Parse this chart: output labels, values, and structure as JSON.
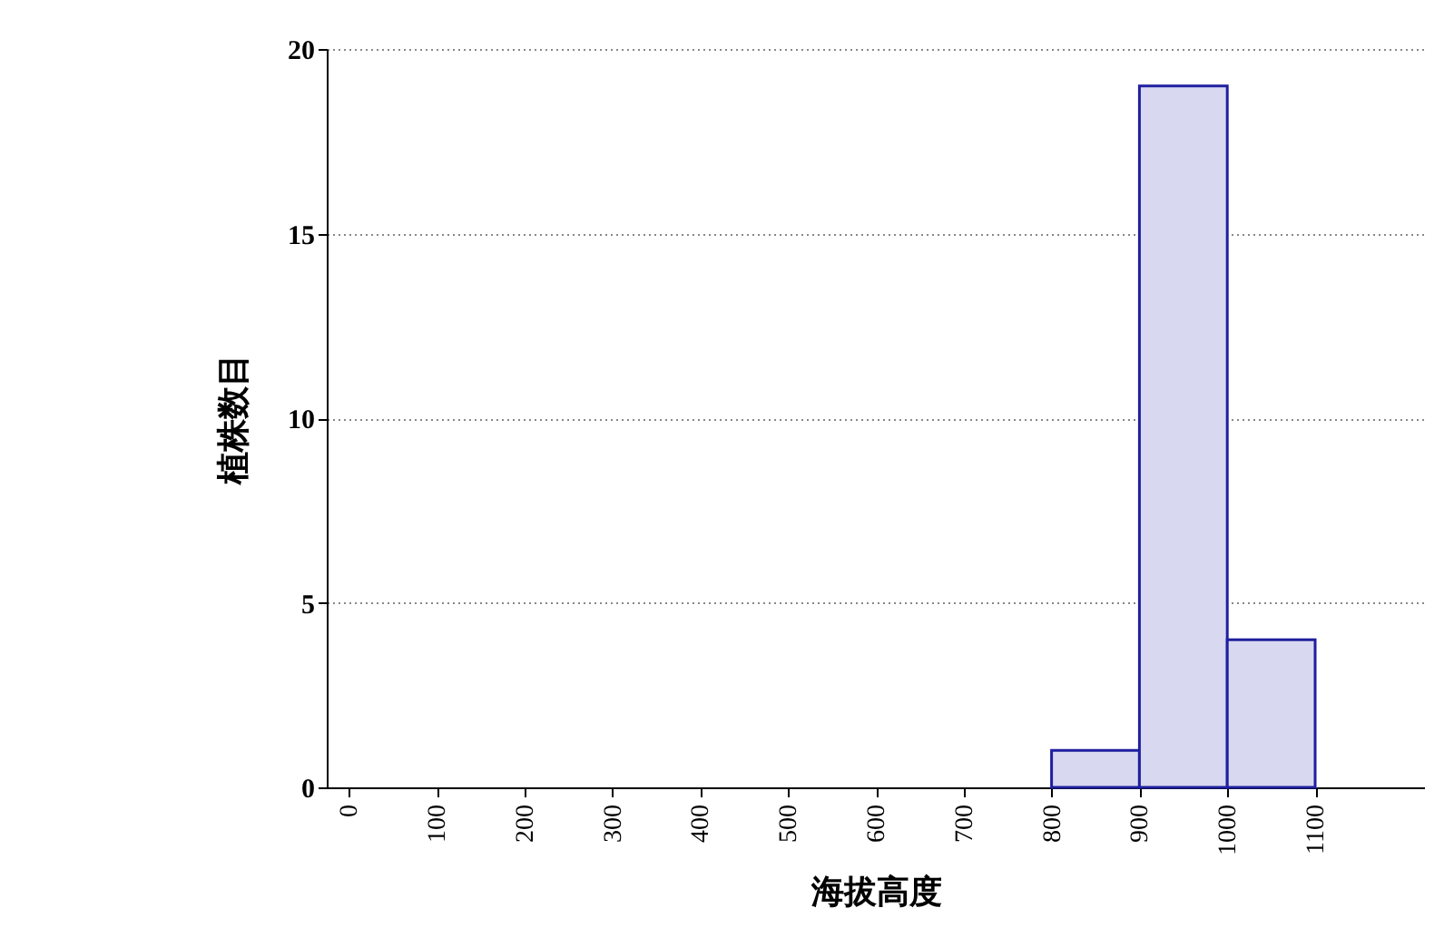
{
  "chart_data": {
    "type": "histogram",
    "xlabel": "海拔高度",
    "ylabel": "植株数目",
    "bins": [
      800,
      900,
      1000,
      1100
    ],
    "values": [
      1,
      19,
      4
    ],
    "color": "#1f1f9f",
    "xlim": [
      -25,
      1225
    ],
    "xticks": [
      0,
      100,
      200,
      300,
      400,
      500,
      600,
      700,
      800,
      900,
      1000,
      1100
    ],
    "ylim": [
      0,
      20
    ],
    "yticks": [
      0,
      5,
      10,
      15,
      20
    ],
    "grid": "y"
  }
}
